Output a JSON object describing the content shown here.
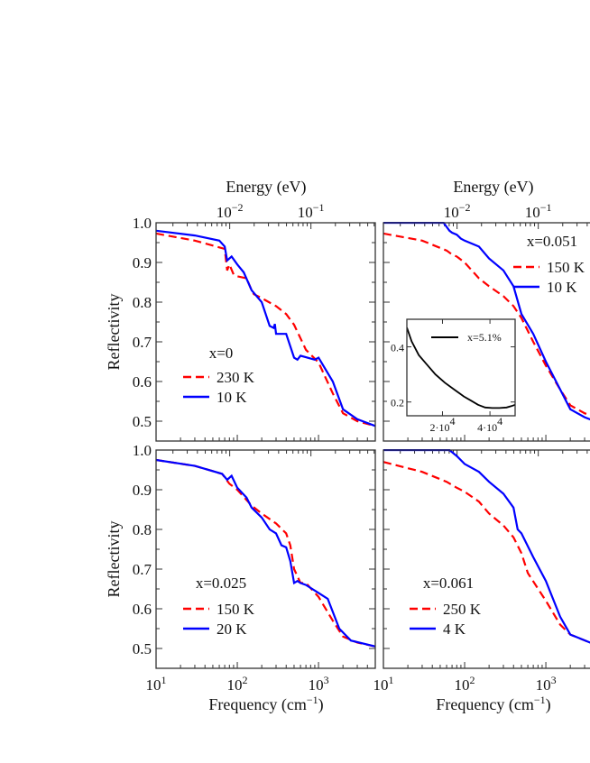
{
  "chart_data": [
    {
      "type": "line",
      "panel": "top-left",
      "annotation": "x=0",
      "top_xlabel": "Energy (eV)",
      "top_tick_labels": [
        "10^-2",
        "10^-1"
      ],
      "ylabel": "Reflectivity",
      "y_tick_labels": [
        "0.5",
        "0.6",
        "0.7",
        "0.8",
        "0.9",
        "1.0"
      ],
      "x_tick_labels": [],
      "xscale": "log",
      "xlim": [
        10,
        5000
      ],
      "ylim": [
        0.45,
        1.0
      ],
      "legend": "lower-left",
      "series": [
        {
          "name": "230 K",
          "color": "#ff0000",
          "style": "dashed",
          "x": [
            10,
            30,
            60,
            70,
            75,
            80,
            90,
            100,
            130,
            150,
            160,
            200,
            300,
            400,
            500,
            700,
            1000,
            1500,
            2000,
            3000,
            5000
          ],
          "y": [
            0.973,
            0.955,
            0.938,
            0.934,
            0.88,
            0.895,
            0.87,
            0.865,
            0.86,
            0.83,
            0.82,
            0.81,
            0.79,
            0.77,
            0.743,
            0.68,
            0.648,
            0.57,
            0.52,
            0.5,
            0.488
          ]
        },
        {
          "name": "10 K",
          "color": "#0000ff",
          "style": "solid",
          "x": [
            10,
            30,
            60,
            70,
            75,
            80,
            85,
            100,
            120,
            150,
            200,
            250,
            280,
            290,
            300,
            400,
            500,
            550,
            600,
            900,
            1000,
            1500,
            2000,
            3000,
            5000
          ],
          "y": [
            0.98,
            0.968,
            0.955,
            0.94,
            0.905,
            0.91,
            0.915,
            0.895,
            0.875,
            0.83,
            0.8,
            0.74,
            0.735,
            0.745,
            0.72,
            0.72,
            0.66,
            0.655,
            0.665,
            0.655,
            0.66,
            0.6,
            0.53,
            0.505,
            0.488
          ]
        }
      ]
    },
    {
      "type": "line",
      "panel": "top-right",
      "annotation": "x=0.051",
      "top_xlabel": "Energy (eV)",
      "top_tick_labels": [
        "10^-2",
        "10^-1"
      ],
      "x_tick_labels": [],
      "xscale": "log",
      "xlim": [
        10,
        5000
      ],
      "ylim": [
        0.45,
        1.0
      ],
      "legend": "upper-right",
      "series": [
        {
          "name": "150 K",
          "color": "#ff0000",
          "style": "dashed",
          "x": [
            10,
            30,
            60,
            70,
            80,
            100,
            150,
            200,
            300,
            400,
            500,
            700,
            1000,
            1500,
            2000,
            3000,
            4000,
            5000
          ],
          "y": [
            0.973,
            0.955,
            0.93,
            0.92,
            0.915,
            0.9,
            0.86,
            0.84,
            0.815,
            0.79,
            0.76,
            0.7,
            0.64,
            0.58,
            0.54,
            0.52,
            0.51,
            0.505
          ]
        },
        {
          "name": "10 K",
          "color": "#0000ff",
          "style": "solid",
          "x": [
            10,
            55,
            65,
            70,
            80,
            90,
            100,
            150,
            200,
            300,
            400,
            500,
            700,
            1000,
            1500,
            2000,
            3000,
            4000,
            5000
          ],
          "y": [
            1.0,
            1.0,
            0.98,
            0.975,
            0.97,
            0.96,
            0.955,
            0.94,
            0.91,
            0.88,
            0.84,
            0.77,
            0.72,
            0.65,
            0.58,
            0.53,
            0.51,
            0.5,
            0.495
          ]
        }
      ]
    },
    {
      "type": "line",
      "panel": "bottom-left",
      "annotation": "x=0.025",
      "xlabel": "Frequency (cm^-1)",
      "ylabel": "Reflectivity",
      "y_tick_labels": [
        "0.5",
        "0.6",
        "0.7",
        "0.8",
        "0.9",
        "1.0"
      ],
      "x_tick_labels": [
        "10^1",
        "10^2",
        "10^3"
      ],
      "xscale": "log",
      "xlim": [
        10,
        5000
      ],
      "ylim": [
        0.45,
        1.0
      ],
      "legend": "lower-left",
      "series": [
        {
          "name": "150 K",
          "color": "#ff0000",
          "style": "dashed",
          "x": [
            10,
            30,
            65,
            80,
            100,
            150,
            200,
            300,
            400,
            450,
            500,
            600,
            700,
            1000,
            1500,
            2000,
            3000,
            5000
          ],
          "y": [
            0.975,
            0.96,
            0.94,
            0.915,
            0.9,
            0.86,
            0.84,
            0.815,
            0.79,
            0.76,
            0.7,
            0.665,
            0.665,
            0.63,
            0.57,
            0.53,
            0.515,
            0.505
          ]
        },
        {
          "name": "20 K",
          "color": "#0000ff",
          "style": "solid",
          "x": [
            10,
            30,
            65,
            75,
            85,
            100,
            130,
            150,
            200,
            250,
            300,
            350,
            400,
            450,
            500,
            550,
            600,
            700,
            1000,
            1300,
            1800,
            2500,
            5000
          ],
          "y": [
            0.975,
            0.96,
            0.94,
            0.925,
            0.935,
            0.905,
            0.88,
            0.855,
            0.83,
            0.8,
            0.79,
            0.76,
            0.755,
            0.72,
            0.665,
            0.67,
            0.665,
            0.66,
            0.64,
            0.625,
            0.55,
            0.52,
            0.505
          ]
        }
      ]
    },
    {
      "type": "line",
      "panel": "bottom-right",
      "annotation": "x=0.061",
      "xlabel": "Frequency (cm^-1)",
      "x_tick_labels": [
        "10^1",
        "10^2",
        "10^3"
      ],
      "xscale": "log",
      "xlim": [
        10,
        5000
      ],
      "ylim": [
        0.45,
        1.0
      ],
      "legend": "lower-left",
      "series": [
        {
          "name": "250 K",
          "color": "#ff0000",
          "style": "dashed",
          "x": [
            10,
            30,
            60,
            80,
            100,
            150,
            200,
            300,
            400,
            500,
            600,
            1000,
            1500,
            2000,
            4000,
            5000
          ],
          "y": [
            0.97,
            0.945,
            0.92,
            0.905,
            0.895,
            0.87,
            0.84,
            0.81,
            0.78,
            0.74,
            0.69,
            0.62,
            0.56,
            0.535,
            0.51,
            0.505
          ]
        },
        {
          "name": "4 K",
          "color": "#0000ff",
          "style": "solid",
          "x": [
            10,
            65,
            80,
            100,
            150,
            200,
            300,
            400,
            450,
            500,
            700,
            1000,
            1500,
            2000,
            4000,
            5000
          ],
          "y": [
            1.0,
            1.0,
            0.985,
            0.965,
            0.945,
            0.92,
            0.89,
            0.855,
            0.8,
            0.79,
            0.73,
            0.67,
            0.58,
            0.535,
            0.51,
            0.505
          ]
        }
      ]
    },
    {
      "type": "line",
      "panel": "inset",
      "xscale": "linear",
      "xlim": [
        5000,
        50600
      ],
      "ylim": [
        0.15,
        0.5
      ],
      "x_ticks": [
        20000,
        40000
      ],
      "x_tick_labels": [
        "2·10^4",
        "4·10^4"
      ],
      "y_ticks": [
        0.2,
        0.4
      ],
      "y_tick_labels": [
        "0.2",
        "0.4"
      ],
      "legend": "upper-right",
      "series": [
        {
          "name": "x=5.1%",
          "color": "#000000",
          "style": "solid",
          "x": [
            5000,
            7000,
            10000,
            13000,
            17000,
            21000,
            25000,
            29000,
            32000,
            35000,
            38000,
            41000,
            44000,
            47000,
            49000,
            50600
          ],
          "y": [
            0.47,
            0.42,
            0.37,
            0.34,
            0.3,
            0.27,
            0.245,
            0.22,
            0.205,
            0.19,
            0.18,
            0.178,
            0.178,
            0.18,
            0.185,
            0.19
          ]
        }
      ]
    }
  ]
}
